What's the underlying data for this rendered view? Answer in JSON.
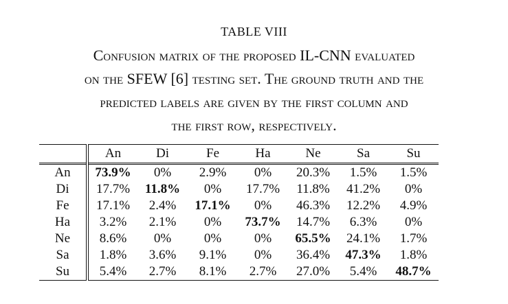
{
  "caption": {
    "table_label": "TABLE VIII",
    "lines": [
      "Confusion matrix of the proposed IL-CNN evaluated",
      "on the SFEW [6] testing set. The ground truth and the",
      "predicted labels are given by the first column and",
      "the first row, respectively."
    ]
  },
  "chart_data": {
    "type": "table",
    "columns": [
      "An",
      "Di",
      "Fe",
      "Ha",
      "Ne",
      "Sa",
      "Su"
    ],
    "rows": [
      {
        "label": "An",
        "values": [
          "73.9%",
          "0%",
          "2.9%",
          "0%",
          "20.3%",
          "1.5%",
          "1.5%"
        ]
      },
      {
        "label": "Di",
        "values": [
          "17.7%",
          "11.8%",
          "0%",
          "17.7%",
          "11.8%",
          "41.2%",
          "0%"
        ]
      },
      {
        "label": "Fe",
        "values": [
          "17.1%",
          "2.4%",
          "17.1%",
          "0%",
          "46.3%",
          "12.2%",
          "4.9%"
        ]
      },
      {
        "label": "Ha",
        "values": [
          "3.2%",
          "2.1%",
          "0%",
          "73.7%",
          "14.7%",
          "6.3%",
          "0%"
        ]
      },
      {
        "label": "Ne",
        "values": [
          "8.6%",
          "0%",
          "0%",
          "0%",
          "65.5%",
          "24.1%",
          "1.7%"
        ]
      },
      {
        "label": "Sa",
        "values": [
          "1.8%",
          "3.6%",
          "9.1%",
          "0%",
          "36.4%",
          "47.3%",
          "1.8%"
        ]
      },
      {
        "label": "Su",
        "values": [
          "5.4%",
          "2.7%",
          "8.1%",
          "2.7%",
          "27.0%",
          "5.4%",
          "48.7%"
        ]
      }
    ],
    "highlight": "diagonal values in bold"
  }
}
